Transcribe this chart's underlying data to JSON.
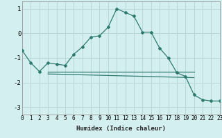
{
  "xlabel": "Humidex (Indice chaleur)",
  "background_color": "#d4efef",
  "grid_color": "#b8d8d8",
  "line_color": "#2d7a6e",
  "series1_x": [
    0,
    1,
    2,
    3,
    4,
    5,
    6,
    7,
    8,
    9,
    10,
    11,
    12,
    13,
    14,
    15,
    16,
    17,
    18,
    19,
    20,
    21,
    22,
    23
  ],
  "series1_y": [
    -0.7,
    -1.2,
    -1.55,
    -1.2,
    -1.25,
    -1.3,
    -0.85,
    -0.55,
    -0.15,
    -0.1,
    0.25,
    1.0,
    0.85,
    0.7,
    0.05,
    0.05,
    -0.6,
    -1.0,
    -1.6,
    -1.75,
    -2.5,
    -2.7,
    -2.75,
    -2.75
  ],
  "series2_x": [
    3,
    20
  ],
  "series2_y": [
    -1.55,
    -1.55
  ],
  "series3_x": [
    3,
    20
  ],
  "series3_y": [
    -1.65,
    -1.8
  ],
  "xlim": [
    0,
    23
  ],
  "ylim": [
    -3.3,
    1.3
  ],
  "yticks": [
    -3,
    -2,
    -1,
    0,
    1
  ],
  "xticks": [
    0,
    1,
    2,
    3,
    4,
    5,
    6,
    7,
    8,
    9,
    10,
    11,
    12,
    13,
    14,
    15,
    16,
    17,
    18,
    19,
    20,
    21,
    22,
    23
  ],
  "xlabel_fontsize": 6.5,
  "tick_fontsize": 5.5,
  "ytick_fontsize": 6.5
}
